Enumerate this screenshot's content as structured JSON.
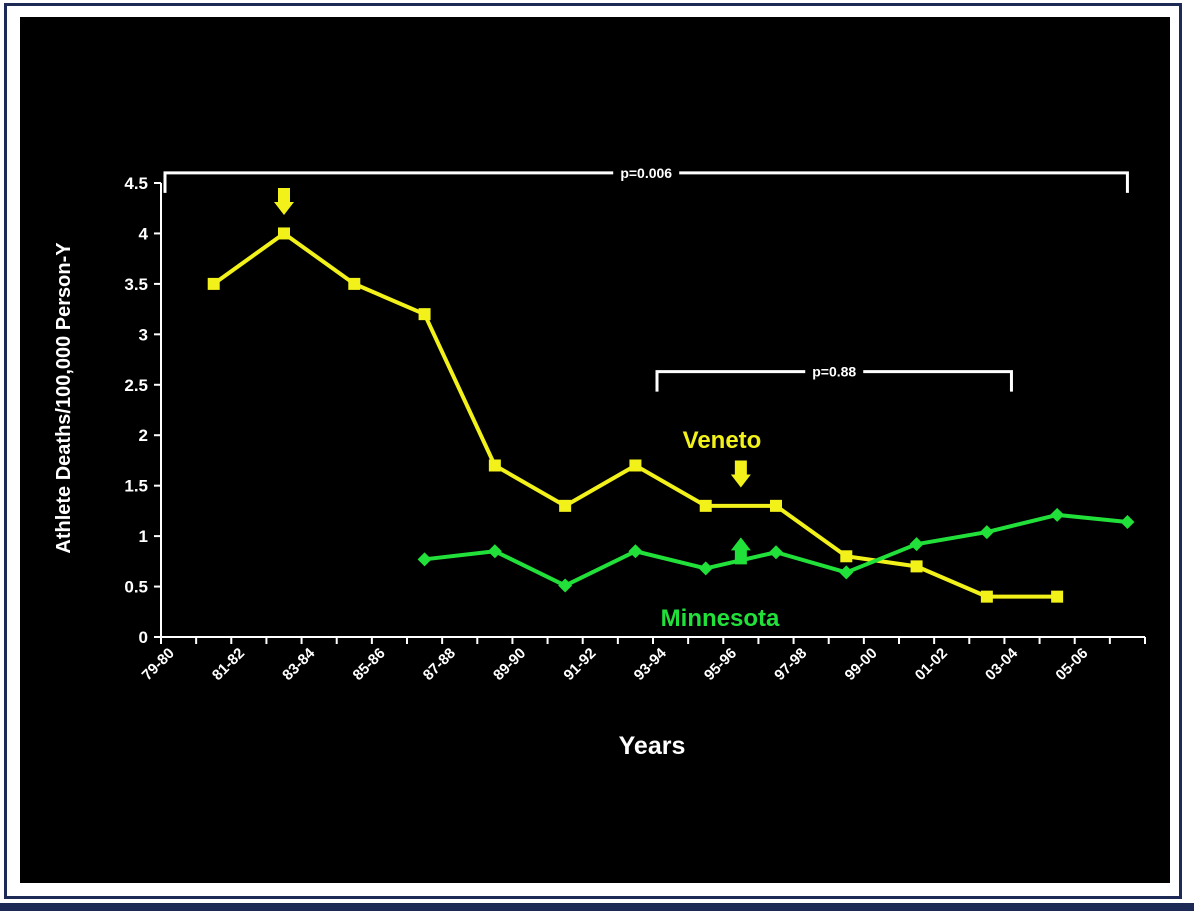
{
  "chart_data": {
    "type": "line",
    "title": "",
    "xlabel": "Years",
    "ylabel": "Athlete Deaths/100,000 Person-Y",
    "ylim": [
      0,
      4.5
    ],
    "yticks": [
      "0",
      "0.5",
      "1",
      "1.5",
      "2",
      "2.5",
      "3",
      "3.5",
      "4",
      "4.5"
    ],
    "xtick_labels": [
      "79-80",
      "81-82",
      "83-84",
      "85-86",
      "87-88",
      "89-90",
      "91-92",
      "93-94",
      "95-96",
      "97-98",
      "99-00",
      "01-02",
      "03-04",
      "05-06"
    ],
    "x": [
      "79-80",
      "80-81",
      "81-82",
      "82-83",
      "83-84",
      "84-85",
      "85-86",
      "86-87",
      "87-88",
      "88-89",
      "89-90",
      "90-91",
      "91-92",
      "92-93",
      "93-94",
      "94-95",
      "95-96",
      "96-97",
      "97-98",
      "98-99",
      "99-00",
      "00-01",
      "01-02",
      "02-03",
      "03-04",
      "04-05",
      "05-06",
      "06-07"
    ],
    "grid": false,
    "series": [
      {
        "name": "Veneto",
        "color": "#f2f21a",
        "marker": "square",
        "points": [
          {
            "x": "80-81",
            "y": 3.5
          },
          {
            "x": "82-83",
            "y": 4.0
          },
          {
            "x": "84-85",
            "y": 3.5
          },
          {
            "x": "86-87",
            "y": 3.2
          },
          {
            "x": "88-89",
            "y": 1.7
          },
          {
            "x": "90-91",
            "y": 1.3
          },
          {
            "x": "92-93",
            "y": 1.7
          },
          {
            "x": "94-95",
            "y": 1.3
          },
          {
            "x": "96-97",
            "y": 1.3
          },
          {
            "x": "98-99",
            "y": 0.8
          },
          {
            "x": "00-01",
            "y": 0.7
          },
          {
            "x": "02-03",
            "y": 0.4
          },
          {
            "x": "04-05",
            "y": 0.4
          }
        ]
      },
      {
        "name": "Minnesota",
        "color": "#22e03a",
        "marker": "diamond",
        "points": [
          {
            "x": "86-87",
            "y": 0.77
          },
          {
            "x": "88-89",
            "y": 0.85
          },
          {
            "x": "90-91",
            "y": 0.51
          },
          {
            "x": "92-93",
            "y": 0.85
          },
          {
            "x": "94-95",
            "y": 0.68
          },
          {
            "x": "96-97",
            "y": 0.84
          },
          {
            "x": "98-99",
            "y": 0.64
          },
          {
            "x": "00-01",
            "y": 0.92
          },
          {
            "x": "02-03",
            "y": 1.04
          },
          {
            "x": "04-05",
            "y": 1.21
          },
          {
            "x": "06-07",
            "y": 1.14
          }
        ]
      }
    ],
    "annotations": [
      {
        "type": "bracket",
        "text": "p=0.006",
        "from": "79-80",
        "to": "06-07",
        "y": 4.6
      },
      {
        "type": "bracket",
        "text": "p=0.88",
        "from": "93-94",
        "to": "03-04",
        "y": 2.63
      },
      {
        "type": "arrow-down",
        "color": "#f2f21a",
        "x": "82-83",
        "y": 4.45
      },
      {
        "type": "arrow-down",
        "color": "#f2f21a",
        "x": "95-96",
        "y": 1.75
      },
      {
        "type": "arrow-up",
        "color": "#22e03a",
        "x": "95-96",
        "y": 0.72
      }
    ]
  }
}
